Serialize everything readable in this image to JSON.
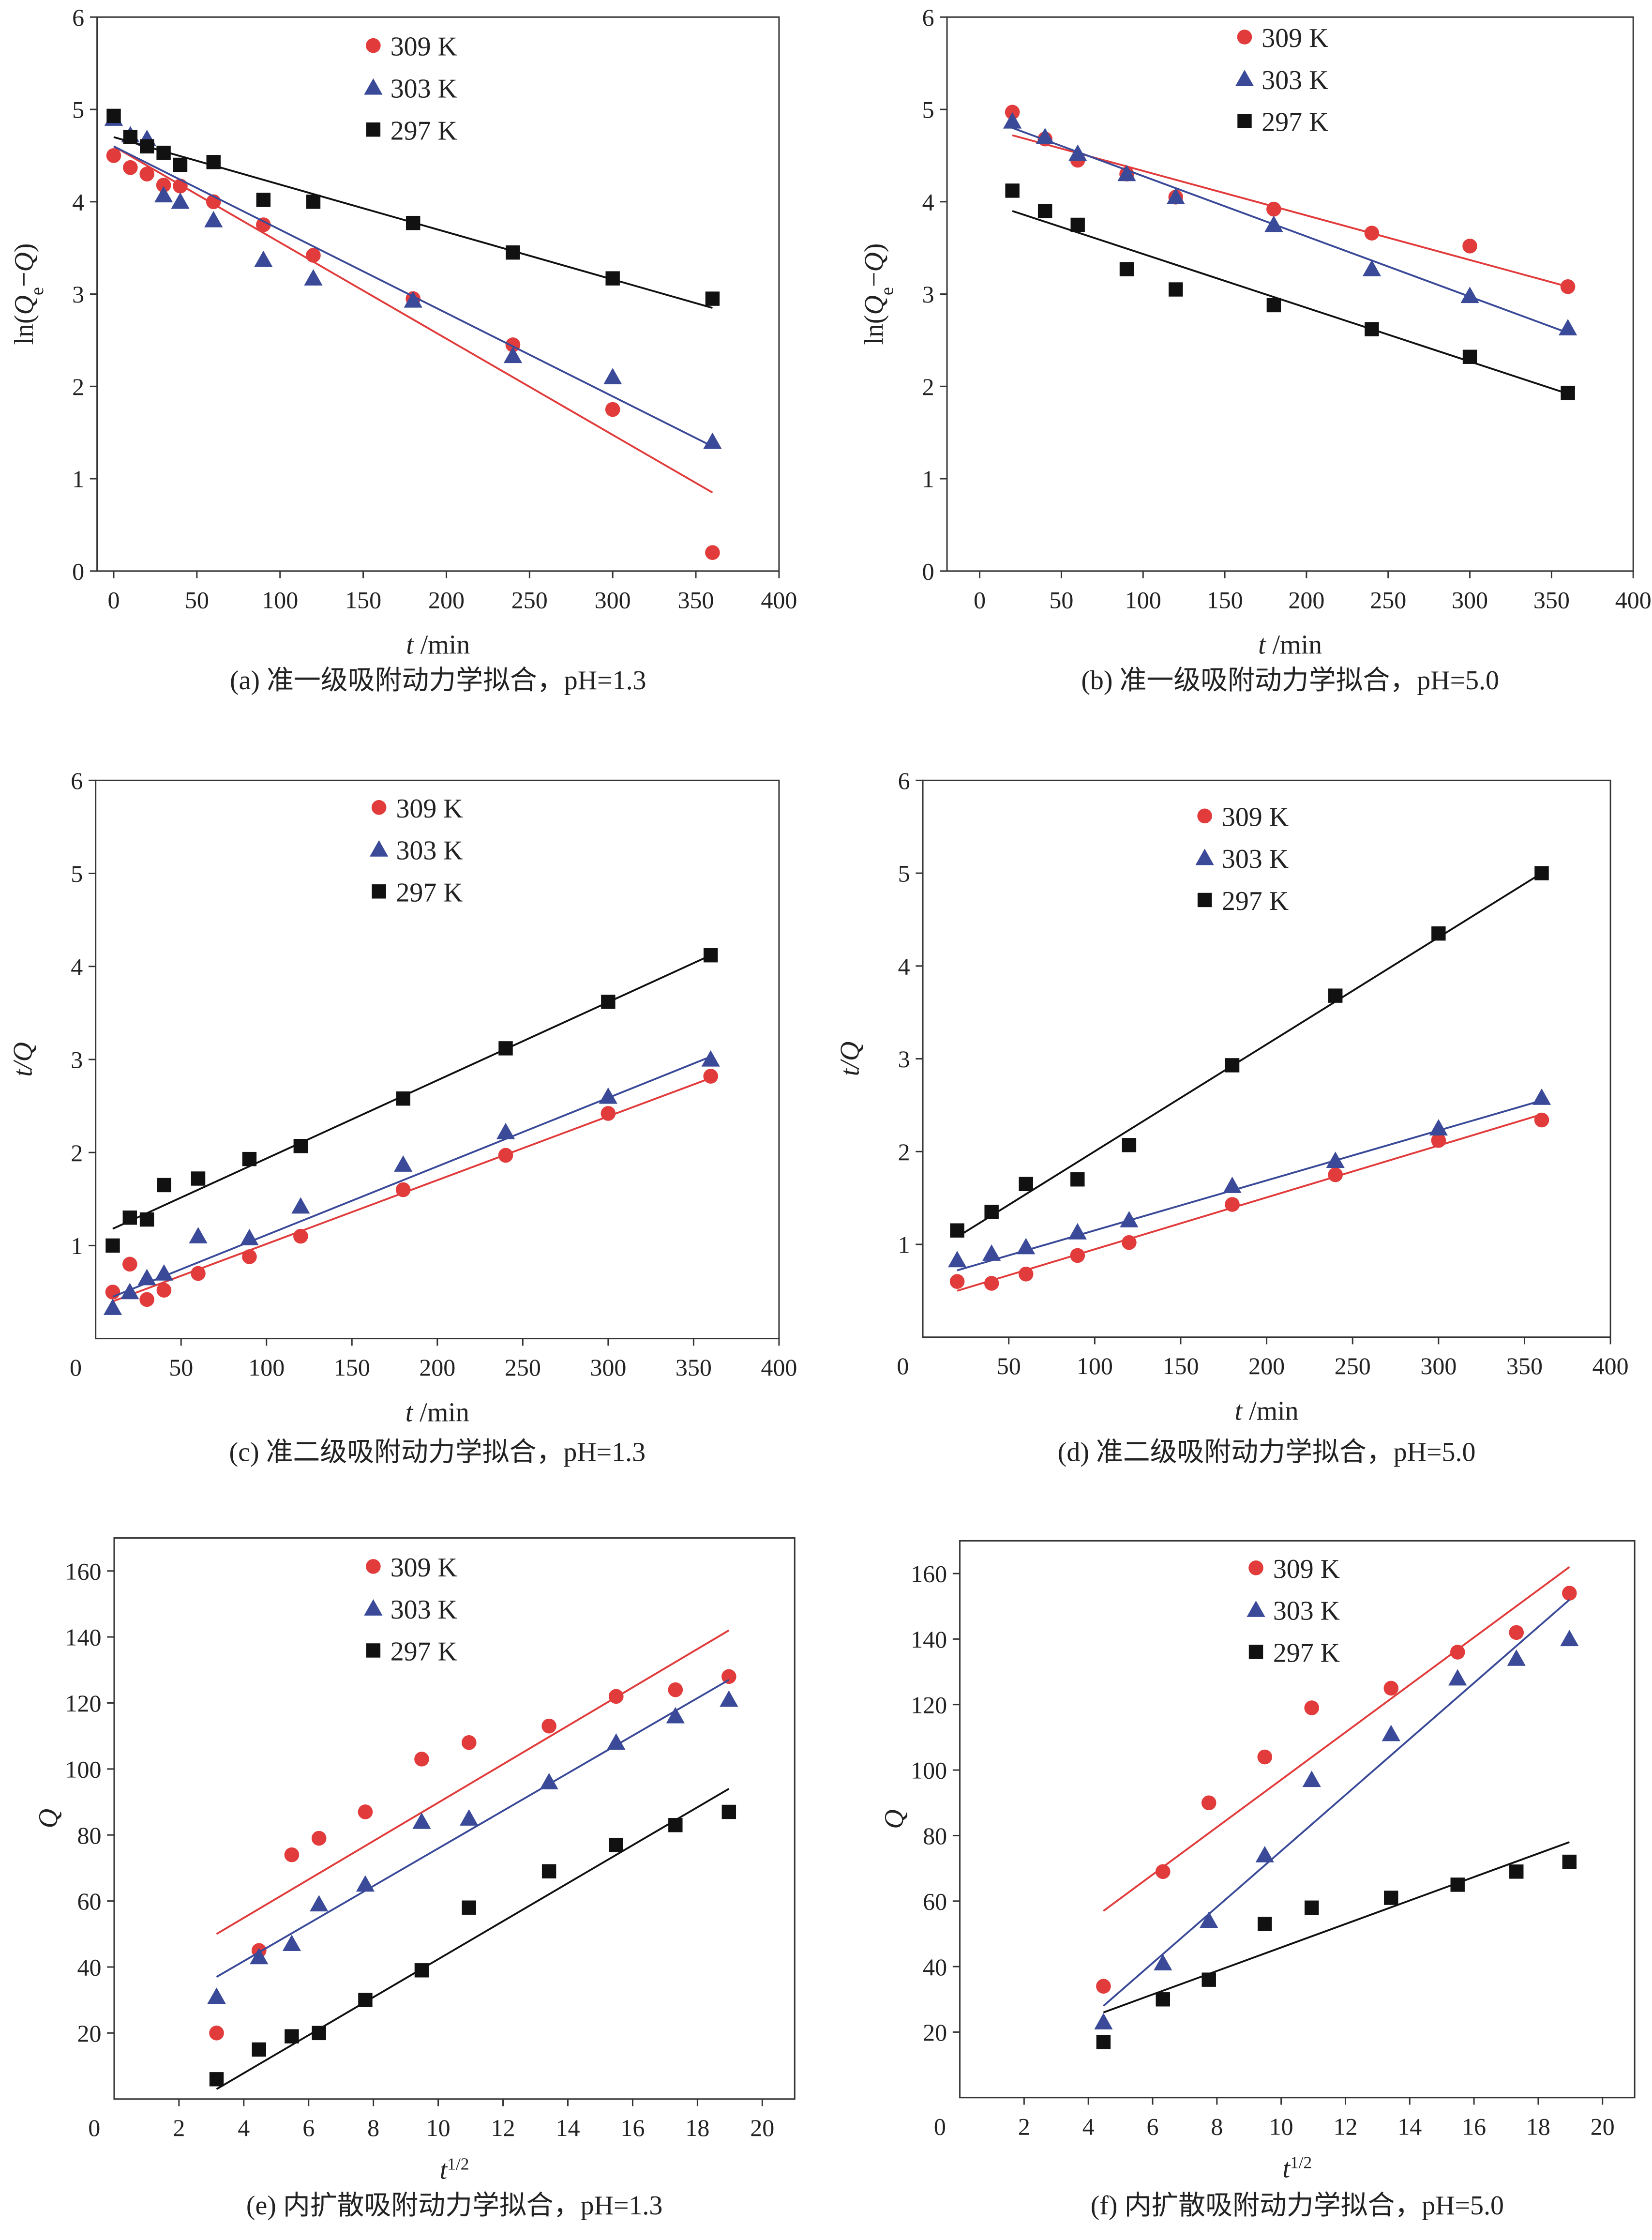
{
  "colors": {
    "309 K": "#e23b3b",
    "303 K": "#3a4a98",
    "297 K": "#111111"
  },
  "markers": {
    "309 K": "circle",
    "303 K": "triangle",
    "297 K": "square"
  },
  "chart_data": [
    {
      "type": "scatter",
      "caption": "(a) 准一级吸附动力学拟合，pH=1.3",
      "xlabel": "t /min",
      "ylabel": "ln(Qe−Q)",
      "xlim": [
        -10,
        400
      ],
      "ylim": [
        0,
        6
      ],
      "xticks": [
        "0",
        "50",
        "100",
        "150",
        "200",
        "250",
        "300",
        "350",
        "400"
      ],
      "yticks": [
        "0",
        "1",
        "2",
        "3",
        "4",
        "5",
        "6"
      ],
      "legend": "top-center",
      "series": [
        {
          "name": "309 K",
          "x": [
            0,
            10,
            20,
            30,
            40,
            60,
            90,
            120,
            180,
            240,
            300,
            360
          ],
          "y": [
            4.5,
            4.37,
            4.3,
            4.18,
            4.17,
            4.0,
            3.75,
            3.42,
            2.95,
            2.45,
            1.75,
            0.2
          ],
          "fit": [
            [
              0,
              4.6
            ],
            [
              360,
              0.85
            ]
          ]
        },
        {
          "name": "303 K",
          "x": [
            0,
            10,
            20,
            30,
            40,
            60,
            90,
            120,
            180,
            240,
            300,
            360
          ],
          "y": [
            4.9,
            4.72,
            4.68,
            4.07,
            4.0,
            3.8,
            3.37,
            3.17,
            2.93,
            2.33,
            2.1,
            1.4
          ],
          "fit": [
            [
              0,
              4.6
            ],
            [
              360,
              1.35
            ]
          ]
        },
        {
          "name": "297 K",
          "x": [
            0,
            10,
            20,
            30,
            40,
            60,
            90,
            120,
            180,
            240,
            300,
            360
          ],
          "y": [
            4.93,
            4.7,
            4.6,
            4.53,
            4.4,
            4.43,
            4.02,
            4.0,
            3.77,
            3.45,
            3.17,
            2.95
          ],
          "fit": [
            [
              0,
              4.7
            ],
            [
              360,
              2.85
            ]
          ]
        }
      ]
    },
    {
      "type": "scatter",
      "caption": "(b) 准一级吸附动力学拟合，pH=5.0",
      "xlabel": "t /min",
      "ylabel": "ln(Qe−Q)",
      "xlim": [
        -20,
        400
      ],
      "ylim": [
        0,
        6
      ],
      "xticks": [
        "0",
        "50",
        "100",
        "150",
        "200",
        "250",
        "300",
        "350",
        "400"
      ],
      "yticks": [
        "0",
        "1",
        "2",
        "3",
        "4",
        "5",
        "6"
      ],
      "legend": "top-center",
      "series": [
        {
          "name": "309 K",
          "x": [
            20,
            40,
            60,
            90,
            120,
            180,
            240,
            300,
            360
          ],
          "y": [
            4.97,
            4.68,
            4.45,
            4.3,
            4.05,
            3.92,
            3.66,
            3.52,
            3.08
          ],
          "fit": [
            [
              20,
              4.72
            ],
            [
              360,
              3.08
            ]
          ]
        },
        {
          "name": "303 K",
          "x": [
            20,
            40,
            60,
            90,
            120,
            180,
            240,
            300,
            360
          ],
          "y": [
            4.87,
            4.7,
            4.52,
            4.3,
            4.05,
            3.75,
            3.27,
            2.98,
            2.63
          ],
          "fit": [
            [
              20,
              4.8
            ],
            [
              360,
              2.58
            ]
          ]
        },
        {
          "name": "297 K",
          "x": [
            20,
            40,
            60,
            90,
            120,
            180,
            240,
            300,
            360
          ],
          "y": [
            4.12,
            3.9,
            3.75,
            3.27,
            3.05,
            2.88,
            2.62,
            2.32,
            1.93
          ],
          "fit": [
            [
              20,
              3.9
            ],
            [
              360,
              1.92
            ]
          ]
        }
      ]
    },
    {
      "type": "scatter",
      "caption": "(c) 准二级吸附动力学拟合，pH=1.3",
      "xlabel": "t /min",
      "ylabel": "t/Q",
      "xlim": [
        0,
        400
      ],
      "ylim": [
        0,
        6
      ],
      "xticks": [
        "0",
        "50",
        "100",
        "150",
        "200",
        "250",
        "300",
        "350",
        "400"
      ],
      "yticks": [
        "0",
        "1",
        "2",
        "3",
        "4",
        "5",
        "6"
      ],
      "legend": "top-center",
      "series": [
        {
          "name": "309 K",
          "x": [
            10,
            20,
            30,
            40,
            60,
            90,
            120,
            180,
            240,
            300,
            360
          ],
          "y": [
            0.5,
            0.8,
            0.42,
            0.52,
            0.7,
            0.88,
            1.1,
            1.6,
            1.97,
            2.42,
            2.82
          ],
          "fit": [
            [
              10,
              0.4
            ],
            [
              360,
              2.8
            ]
          ]
        },
        {
          "name": "303 K",
          "x": [
            10,
            20,
            30,
            40,
            60,
            90,
            120,
            180,
            240,
            300,
            360
          ],
          "y": [
            0.33,
            0.5,
            0.65,
            0.7,
            1.1,
            1.08,
            1.42,
            1.87,
            2.22,
            2.6,
            3.0
          ],
          "fit": [
            [
              10,
              0.45
            ],
            [
              360,
              3.03
            ]
          ]
        },
        {
          "name": "297 K",
          "x": [
            10,
            20,
            30,
            40,
            60,
            90,
            120,
            180,
            240,
            300,
            360
          ],
          "y": [
            1.0,
            1.3,
            1.28,
            1.65,
            1.72,
            1.93,
            2.07,
            2.58,
            3.12,
            3.62,
            4.12
          ],
          "fit": [
            [
              10,
              1.18
            ],
            [
              360,
              4.12
            ]
          ]
        }
      ]
    },
    {
      "type": "scatter",
      "caption": "(d) 准二级吸附动力学拟合，pH=5.0",
      "xlabel": "t /min",
      "ylabel": "t/Q",
      "xlim": [
        0,
        400
      ],
      "ylim": [
        0,
        6
      ],
      "xticks": [
        "0",
        "50",
        "100",
        "150",
        "200",
        "250",
        "300",
        "350",
        "400"
      ],
      "yticks": [
        "0",
        "1",
        "2",
        "3",
        "4",
        "5",
        "6"
      ],
      "legend": "top-center",
      "series": [
        {
          "name": "309 K",
          "x": [
            20,
            40,
            60,
            90,
            120,
            180,
            240,
            300,
            360
          ],
          "y": [
            0.6,
            0.58,
            0.68,
            0.88,
            1.02,
            1.43,
            1.75,
            2.12,
            2.34
          ],
          "fit": [
            [
              20,
              0.5
            ],
            [
              360,
              2.4
            ]
          ]
        },
        {
          "name": "303 K",
          "x": [
            20,
            40,
            60,
            90,
            120,
            180,
            240,
            300,
            360
          ],
          "y": [
            0.83,
            0.9,
            0.97,
            1.13,
            1.26,
            1.63,
            1.9,
            2.25,
            2.58
          ],
          "fit": [
            [
              20,
              0.72
            ],
            [
              360,
              2.55
            ]
          ]
        },
        {
          "name": "297 K",
          "x": [
            20,
            40,
            60,
            90,
            120,
            180,
            240,
            300,
            360
          ],
          "y": [
            1.15,
            1.35,
            1.65,
            1.7,
            2.07,
            2.93,
            3.68,
            4.35,
            5.0
          ],
          "fit": [
            [
              20,
              1.08
            ],
            [
              360,
              5.0
            ]
          ]
        }
      ]
    },
    {
      "type": "scatter",
      "caption": "(e) 内扩散吸附动力学拟合，pH=1.3",
      "xlabel": "t1/2",
      "ylabel": "Q",
      "xlim": [
        0,
        21
      ],
      "ylim": [
        0,
        170
      ],
      "xticks": [
        "0",
        "2",
        "4",
        "6",
        "8",
        "10",
        "12",
        "14",
        "16",
        "18",
        "20"
      ],
      "yticks": [
        "0",
        "20",
        "40",
        "60",
        "80",
        "100",
        "120",
        "140",
        "160"
      ],
      "legend": "top-center",
      "series": [
        {
          "name": "309 K",
          "x": [
            3.16,
            4.47,
            5.48,
            6.32,
            7.75,
            9.49,
            10.95,
            13.42,
            15.49,
            17.32,
            18.97
          ],
          "y": [
            20,
            45,
            74,
            79,
            87,
            103,
            108,
            113,
            122,
            124,
            128
          ],
          "fit": [
            [
              3.16,
              50
            ],
            [
              18.97,
              142
            ]
          ]
        },
        {
          "name": "303 K",
          "x": [
            3.16,
            4.47,
            5.48,
            6.32,
            7.75,
            9.49,
            10.95,
            13.42,
            15.49,
            17.32,
            18.97
          ],
          "y": [
            31,
            43,
            47,
            59,
            65,
            84,
            85,
            96,
            108,
            116,
            121
          ],
          "fit": [
            [
              3.16,
              37
            ],
            [
              18.97,
              127
            ]
          ]
        },
        {
          "name": "297 K",
          "x": [
            3.16,
            4.47,
            5.48,
            6.32,
            7.75,
            9.49,
            10.95,
            13.42,
            15.49,
            17.32,
            18.97
          ],
          "y": [
            6,
            15,
            19,
            20,
            30,
            39,
            58,
            69,
            77,
            83,
            87
          ],
          "fit": [
            [
              3.16,
              3
            ],
            [
              18.97,
              94
            ]
          ]
        }
      ]
    },
    {
      "type": "scatter",
      "caption": "(f) 内扩散吸附动力学拟合，pH=5.0",
      "xlabel": "t1/2",
      "ylabel": "Q",
      "xlim": [
        0,
        21
      ],
      "ylim": [
        0,
        170
      ],
      "xticks": [
        "0",
        "2",
        "4",
        "6",
        "8",
        "10",
        "12",
        "14",
        "16",
        "18",
        "20"
      ],
      "yticks": [
        "0",
        "20",
        "40",
        "60",
        "80",
        "100",
        "120",
        "140",
        "160"
      ],
      "legend": "top-center",
      "series": [
        {
          "name": "309 K",
          "x": [
            4.47,
            6.32,
            7.75,
            9.49,
            10.95,
            13.42,
            15.49,
            17.32,
            18.97
          ],
          "y": [
            34,
            69,
            90,
            104,
            119,
            125,
            136,
            142,
            154
          ],
          "fit": [
            [
              4.47,
              57
            ],
            [
              18.97,
              162
            ]
          ]
        },
        {
          "name": "303 K",
          "x": [
            4.47,
            6.32,
            7.75,
            9.49,
            10.95,
            13.42,
            15.49,
            17.32,
            18.97
          ],
          "y": [
            23,
            41,
            54,
            74,
            97,
            111,
            128,
            134,
            140
          ],
          "fit": [
            [
              4.47,
              28
            ],
            [
              18.97,
              152
            ]
          ]
        },
        {
          "name": "297 K",
          "x": [
            4.47,
            6.32,
            7.75,
            9.49,
            10.95,
            13.42,
            15.49,
            17.32,
            18.97
          ],
          "y": [
            17,
            30,
            36,
            53,
            58,
            61,
            65,
            69,
            72
          ],
          "fit": [
            [
              4.47,
              26
            ],
            [
              18.97,
              78
            ]
          ]
        }
      ]
    }
  ]
}
